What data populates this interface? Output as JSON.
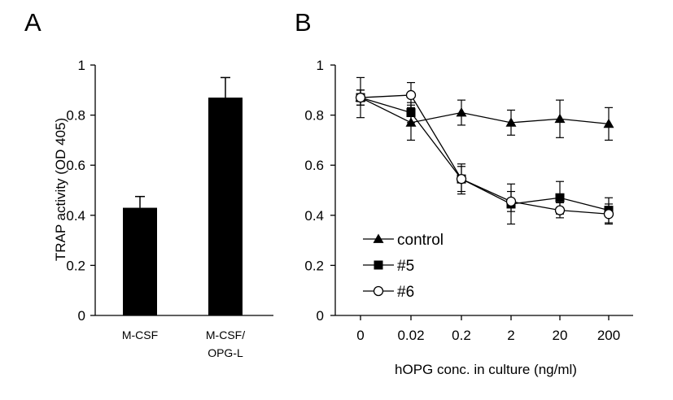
{
  "chart_data": [
    {
      "panel_label": "A",
      "type": "bar",
      "ylabel": "TRAP activity (OD 405)",
      "ylim": [
        0,
        1
      ],
      "yticks": [
        "0",
        "0.2",
        "0.4",
        "0.6",
        "0.8",
        "1"
      ],
      "categories": [
        [
          "M-CSF"
        ],
        [
          "M-CSF/",
          "OPG-L"
        ]
      ],
      "values": [
        0.43,
        0.87
      ],
      "errors": [
        0.045,
        0.08
      ],
      "bar_color": "#000000"
    },
    {
      "panel_label": "B",
      "type": "line",
      "xlabel": "hOPG conc. in culture (ng/ml)",
      "x": [
        "0",
        "0.02",
        "0.2",
        "2",
        "20",
        "200"
      ],
      "ylim": [
        0,
        1
      ],
      "yticks": [
        "0",
        "0.2",
        "0.4",
        "0.6",
        "0.8",
        "1"
      ],
      "legend_position": "bottom-left",
      "series": [
        {
          "name": "control",
          "marker": "triangle-filled",
          "values": [
            0.87,
            0.77,
            0.81,
            0.77,
            0.785,
            0.765
          ],
          "errors": [
            0.08,
            0.07,
            0.05,
            0.05,
            0.075,
            0.065
          ]
        },
        {
          "name": "#5",
          "marker": "square-filled",
          "values": [
            0.87,
            0.81,
            0.545,
            0.445,
            0.47,
            0.42
          ],
          "errors": [
            0.03,
            0.04,
            0.06,
            0.08,
            0.065,
            0.05
          ]
        },
        {
          "name": "#6",
          "marker": "circle-open",
          "values": [
            0.87,
            0.88,
            0.545,
            0.455,
            0.42,
            0.405
          ],
          "errors": [
            0.03,
            0.05,
            0.05,
            0.04,
            0.03,
            0.04
          ]
        }
      ]
    }
  ]
}
